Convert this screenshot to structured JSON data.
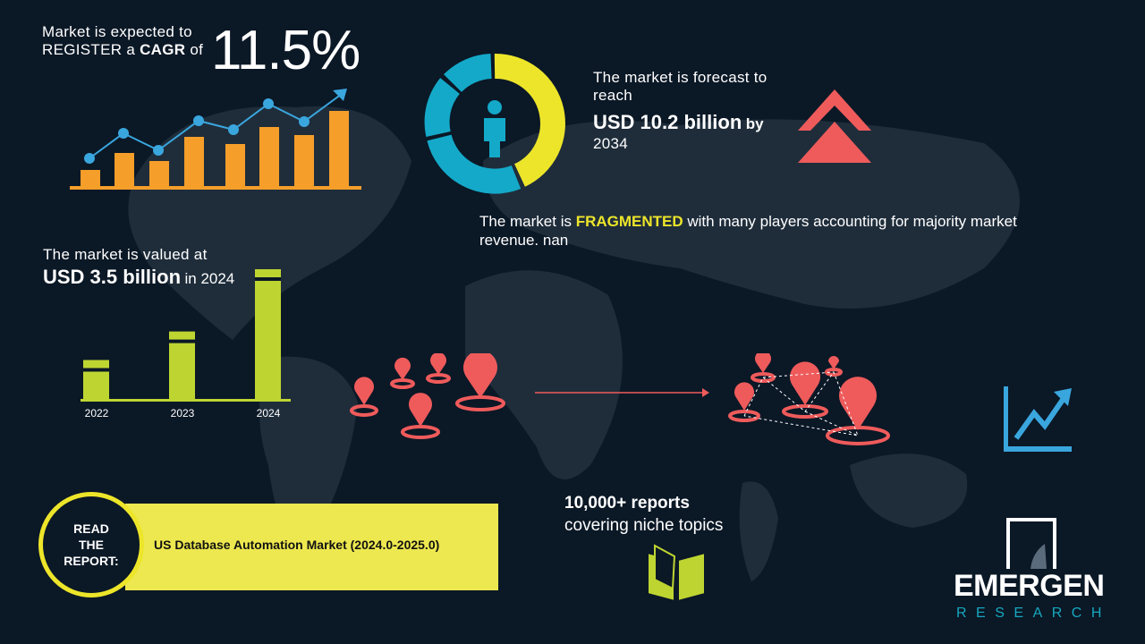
{
  "cagr": {
    "line1": "Market is expected to",
    "line2_pre": "REGISTER a ",
    "line2_bold": "CAGR",
    "line2_post": " of",
    "value": "11.5%"
  },
  "forecast": {
    "line1": "The market is forecast to",
    "line2": "reach",
    "value": "USD 10.2 billion",
    "by": "by",
    "year": "2034"
  },
  "fragmented": {
    "pre": "The market is ",
    "highlight": "FRAGMENTED",
    "post": " with many players accounting for majority market",
    "line2": "revenue. nan"
  },
  "valued": {
    "line1": "The market is valued at",
    "value": "USD 3.5 billion",
    "suffix": "in 2024"
  },
  "chart_data": {
    "type": "bar",
    "categories": [
      "2022",
      "2023",
      "2024"
    ],
    "values": [
      1.5,
      2.6,
      5
    ]
  },
  "report": {
    "circle": [
      "READ",
      "THE",
      "REPORT:"
    ],
    "title": "US Database Automation Market (2024.0-2025.0)"
  },
  "reports": {
    "line1": "10,000+ reports",
    "line2": "covering niche topics"
  },
  "logo": {
    "name": "EMERGEN",
    "sub": "RESEARCH"
  },
  "colors": {
    "bg": "#0b1826",
    "orange": "#f59e2a",
    "blue": "#3aa6de",
    "yellow": "#ede52a",
    "green": "#bed531",
    "red": "#ef5b5b",
    "cyan": "#14a9c9"
  }
}
